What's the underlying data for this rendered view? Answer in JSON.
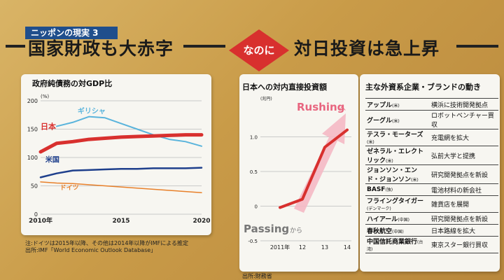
{
  "header": {
    "tag": "ニッポンの現実 3",
    "left_title": "国家財政も大赤字",
    "badge": "なのに",
    "right_title": "対日投資は急上昇"
  },
  "colors": {
    "japan": "#d8302e",
    "greece": "#5ab4dc",
    "usa": "#1e3f8c",
    "germany": "#e8802a",
    "invest_line": "#d8302e",
    "arrow": "#f4b9c4"
  },
  "chart_data": [
    {
      "type": "line",
      "title": "政府純債務の対GDP比",
      "unit_label": "(%)",
      "ylim": [
        0,
        200
      ],
      "yticks": [
        0,
        50,
        100,
        150,
        200
      ],
      "ytick_labels": [
        "0",
        "50",
        "100",
        "150",
        "200"
      ],
      "xlim": [
        2010,
        2020
      ],
      "xticks": [
        2010,
        2015,
        2020
      ],
      "xtick_labels": [
        "2010年",
        "2015",
        "2020"
      ],
      "series": [
        {
          "name": "ギリシャ",
          "x": [
            2011,
            2012,
            2013,
            2014,
            2015,
            2016,
            2017,
            2018,
            2019,
            2020
          ],
          "values": [
            155,
            162,
            172,
            170,
            160,
            150,
            140,
            132,
            128,
            120
          ]
        },
        {
          "name": "日本",
          "x": [
            2010,
            2011,
            2012,
            2013,
            2014,
            2015,
            2016,
            2017,
            2018,
            2019,
            2020
          ],
          "values": [
            110,
            125,
            128,
            132,
            134,
            136,
            137,
            138,
            139,
            140,
            140
          ]
        },
        {
          "name": "米国",
          "x": [
            2010,
            2011,
            2012,
            2013,
            2014,
            2015,
            2016,
            2017,
            2018,
            2019,
            2020
          ],
          "values": [
            65,
            72,
            77,
            78,
            79,
            80,
            80,
            81,
            81,
            81,
            82
          ]
        },
        {
          "name": "ドイツ",
          "x": [
            2010,
            2011,
            2012,
            2013,
            2014,
            2015,
            2016,
            2017,
            2018,
            2019,
            2020
          ],
          "values": [
            57,
            55,
            54,
            52,
            50,
            48,
            46,
            44,
            42,
            40,
            38
          ]
        }
      ],
      "note": "注:ドイツは2015年以降、その他は2014年以降がIMFによる推定",
      "source": "出所:IMF「World Economic Outlook Database」"
    },
    {
      "type": "line",
      "title": "日本への対内直接投資額",
      "unit_label": "(兆円)",
      "ylim": [
        -0.5,
        1.5
      ],
      "yticks": [
        -0.5,
        0,
        0.5,
        1.0
      ],
      "ytick_labels": [
        "-0.5",
        "0",
        "0.5",
        "1.0"
      ],
      "xticks": [
        2011,
        2012,
        2013,
        2014
      ],
      "xtick_labels": [
        "2011年",
        "12",
        "13",
        "14"
      ],
      "series": [
        {
          "name": "対内直接投資額",
          "x": [
            2011,
            2012,
            2013,
            2014
          ],
          "values": [
            -0.02,
            0.1,
            0.85,
            1.1
          ]
        }
      ],
      "annotations": {
        "rushing": "Rushing",
        "rushing_suffix": "へ",
        "passing": "Passing",
        "passing_suffix": "から"
      },
      "source": "出所:財務省"
    }
  ],
  "brands": {
    "title": "主な外資系企業・ブランドの動き",
    "rows": [
      {
        "company": "アップル",
        "country": "(米)",
        "desc": "横浜に技術開発拠点"
      },
      {
        "company": "グーグル",
        "country": "(米)",
        "desc": "ロボットベンチャー買収"
      },
      {
        "company": "テスラ・モーターズ",
        "country": "(米)",
        "desc": "充電網を拡大"
      },
      {
        "company": "ゼネラル・エレクトリック",
        "country": "(米)",
        "desc": "弘前大学と提携"
      },
      {
        "company": "ジョンソン・エンド・ジョンソン",
        "country": "(米)",
        "desc": "研究開発拠点を新設"
      },
      {
        "company": "BASF",
        "country": "(独)",
        "desc": "電池材料の新会社"
      },
      {
        "company": "フライングタイガー",
        "country": "(デンマーク)",
        "desc": "雑貨店を展開"
      },
      {
        "company": "ハイアール",
        "country": "(中国)",
        "desc": "研究開発拠点を新設"
      },
      {
        "company": "春秋航空",
        "country": "(中国)",
        "desc": "日本路線を拡大"
      },
      {
        "company": "中国信託商業銀行",
        "country": "(台湾)",
        "desc": "東京スター銀行買収"
      }
    ]
  }
}
